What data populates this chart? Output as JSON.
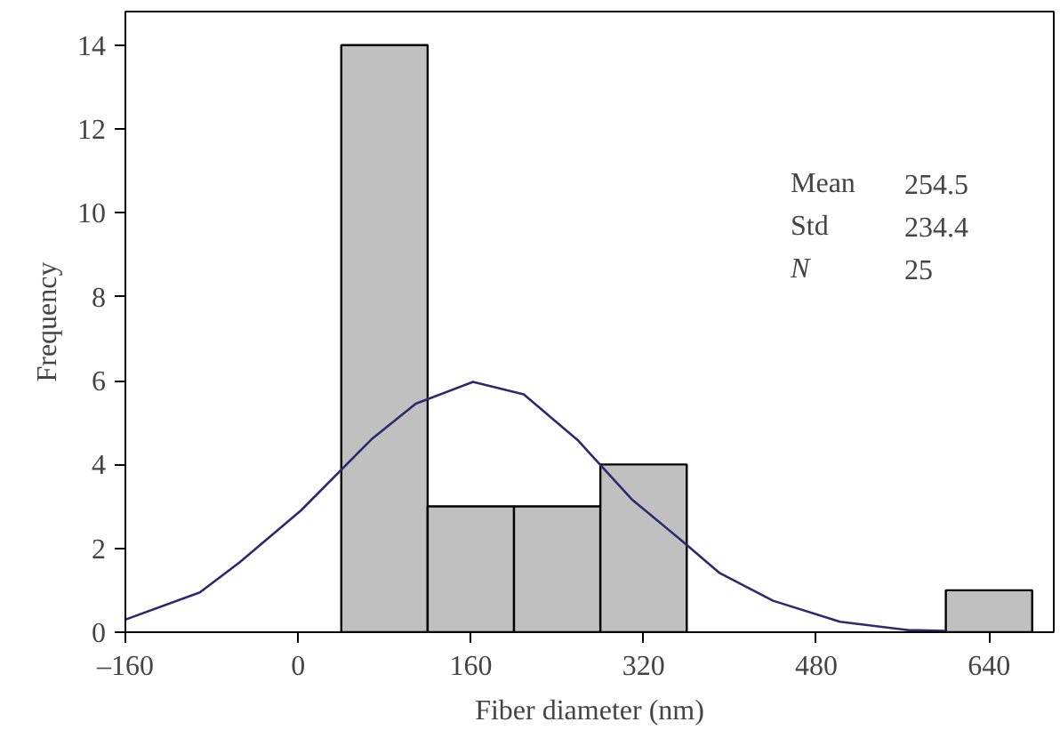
{
  "chart_data": {
    "type": "histogram",
    "xlabel": "Fiber diameter (nm)",
    "ylabel": "Frequency",
    "bins": [
      40,
      120,
      200,
      280,
      360,
      440,
      520,
      600,
      680
    ],
    "values": [
      14,
      3,
      3,
      4,
      0,
      0,
      0,
      1
    ],
    "color": "#c0c0c0",
    "series": [
      {
        "type": "line",
        "color": "#2b2a6e",
        "x": [
          -160,
          -91,
          -54,
          2.5,
          68,
          109,
          162,
          209,
          259,
          309,
          356,
          390,
          440,
          502,
          565,
          600
        ],
        "values": [
          0.3,
          0.95,
          1.67,
          2.9,
          4.6,
          5.45,
          5.97,
          5.67,
          4.58,
          3.17,
          2.17,
          1.42,
          0.75,
          0.25,
          0.05,
          0.03
        ]
      }
    ],
    "xlim": [
      -160,
      700
    ],
    "ylim": [
      0,
      14.8
    ],
    "xticks": [
      {
        "value": -160,
        "label": "–160"
      },
      0,
      160,
      320,
      480,
      640
    ],
    "yticks": [
      0,
      2,
      4,
      6,
      8,
      10,
      12,
      14
    ],
    "annotations": [
      "Mean",
      "254.5",
      "Std",
      "234.4",
      "N",
      "25"
    ],
    "grid": false
  }
}
